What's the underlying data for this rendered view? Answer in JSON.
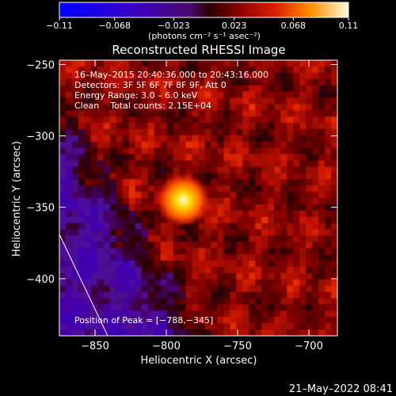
{
  "chart_data": {
    "type": "heatmap",
    "title": "Reconstructed RHESSI Image",
    "xlabel": "Heliocentric X (arcsec)",
    "ylabel": "Heliocentric Y (arcsec)",
    "xlim": [
      -875,
      -680
    ],
    "ylim": [
      -440,
      -247
    ],
    "x_ticks": [
      -850,
      -800,
      -750,
      -700
    ],
    "x_tick_labels": [
      "−850",
      "−800",
      "−750",
      "−700"
    ],
    "y_ticks": [
      -250,
      -300,
      -350,
      -400
    ],
    "y_tick_labels": [
      "−250",
      "−300",
      "−350",
      "−400"
    ],
    "colorbar": {
      "min": -0.11,
      "max": 0.11,
      "ticks": [
        -0.11,
        -0.068,
        -0.023,
        0.023,
        0.068,
        0.11
      ],
      "tick_labels": [
        "−0.11",
        "−0.068",
        "−0.023",
        "0.023",
        "0.068",
        "0.11"
      ],
      "unit_label": "(photons cm⁻² s⁻¹ asec⁻²)"
    },
    "info_lines": [
      "16–May–2015 20:40:36.000 to 20:43:16.000",
      "Detectors: 3F 5F 6F 7F 8F 9F, Att 0",
      "Energy Range: 3.0 – 6.0 keV",
      "Clean    Total counts: 2.15E+04"
    ],
    "peak_label": "Position of Peak = [−788,−345]",
    "peak": [
      -788,
      -345
    ],
    "date_stamp": "21–May–2022 08:41"
  }
}
